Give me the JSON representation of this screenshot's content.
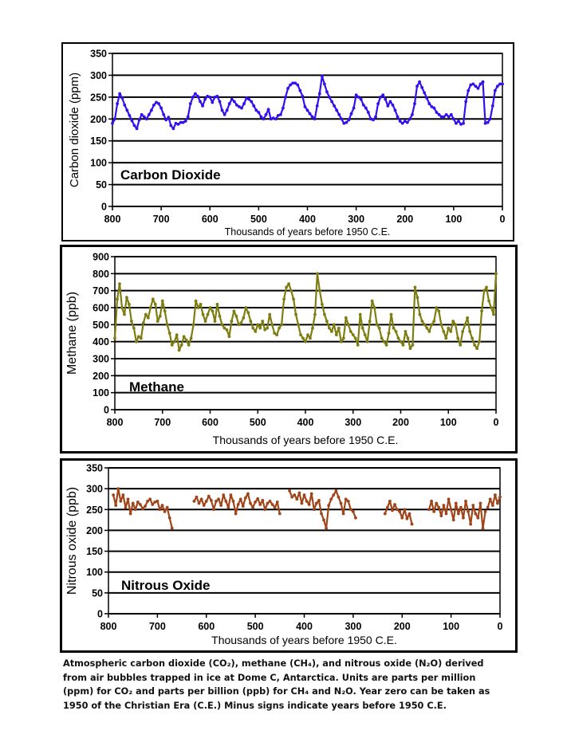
{
  "chart_data": [
    {
      "type": "line",
      "ylabel": "Carbon dioxide (ppm)",
      "xlabel": "Thousands of years before 1950 C.E.",
      "inset_label": "Carbon Dioxide",
      "x_ticks": [
        "800",
        "700",
        "600",
        "500",
        "400",
        "300",
        "200",
        "100",
        "0"
      ],
      "y_ticks": [
        "0",
        "50",
        "100",
        "150",
        "200",
        "250",
        "300",
        "350"
      ],
      "xlim": [
        800,
        0
      ],
      "ylim": [
        0,
        350
      ],
      "color": "#3311ee",
      "series": [
        {
          "x": [
            800,
            795,
            790,
            785,
            780,
            775,
            770,
            765,
            760,
            755,
            750,
            745,
            740,
            735,
            730,
            725,
            720,
            715,
            710,
            705,
            700,
            695,
            690,
            685,
            680,
            675,
            670,
            665,
            660,
            655,
            650,
            645,
            640,
            635,
            630,
            625,
            620,
            615,
            610,
            605,
            600,
            595,
            590,
            585,
            580,
            575,
            570,
            565,
            560,
            555,
            550,
            545,
            540,
            535,
            530,
            525,
            520,
            515,
            510,
            505,
            500,
            495,
            490,
            485,
            480,
            475,
            470,
            465,
            460,
            455,
            450,
            445,
            440,
            435,
            430,
            425,
            420,
            415,
            410,
            405,
            400,
            395,
            390,
            385,
            380,
            375,
            370,
            365,
            360,
            355,
            350,
            345,
            340,
            335,
            330,
            325,
            320,
            315,
            310,
            305,
            300,
            295,
            290,
            285,
            280,
            275,
            270,
            265,
            260,
            255,
            250,
            245,
            240,
            235,
            230,
            225,
            220,
            215,
            210,
            205,
            200,
            195,
            190,
            185,
            180,
            175,
            170,
            165,
            160,
            155,
            150,
            145,
            140,
            135,
            130,
            125,
            120,
            115,
            110,
            105,
            100,
            95,
            90,
            85,
            80,
            75,
            70,
            65,
            60,
            55,
            50,
            45,
            40,
            35,
            30,
            25,
            20,
            15,
            10,
            5,
            0
          ],
          "y": [
            190,
            200,
            235,
            258,
            248,
            232,
            220,
            208,
            196,
            185,
            178,
            198,
            210,
            205,
            200,
            210,
            220,
            232,
            238,
            235,
            225,
            210,
            198,
            204,
            185,
            178,
            190,
            188,
            192,
            192,
            195,
            205,
            235,
            250,
            258,
            252,
            240,
            230,
            245,
            252,
            250,
            238,
            250,
            252,
            240,
            220,
            210,
            220,
            235,
            245,
            240,
            232,
            228,
            225,
            235,
            248,
            245,
            240,
            230,
            220,
            215,
            205,
            200,
            210,
            222,
            200,
            202,
            200,
            208,
            210,
            225,
            250,
            270,
            278,
            282,
            282,
            278,
            265,
            252,
            228,
            220,
            212,
            205,
            200,
            230,
            258,
            298,
            280,
            262,
            250,
            240,
            230,
            220,
            210,
            200,
            190,
            192,
            198,
            212,
            225,
            255,
            250,
            245,
            232,
            225,
            215,
            200,
            198,
            205,
            235,
            250,
            255,
            245,
            230,
            240,
            232,
            220,
            205,
            195,
            190,
            195,
            192,
            200,
            210,
            235,
            275,
            285,
            272,
            260,
            248,
            235,
            228,
            225,
            215,
            210,
            205,
            205,
            210,
            205,
            210,
            200,
            190,
            195,
            188,
            190,
            240,
            265,
            278,
            280,
            275,
            270,
            280,
            285,
            190,
            192,
            200,
            230,
            265,
            275,
            280,
            280
          ]
        }
      ]
    },
    {
      "type": "line",
      "ylabel": "Methane (ppb)",
      "xlabel": "Thousands of years before 1950 C.E.",
      "inset_label": "Methane",
      "x_ticks": [
        "800",
        "700",
        "600",
        "500",
        "400",
        "300",
        "200",
        "100",
        "0"
      ],
      "y_ticks": [
        "0",
        "100",
        "200",
        "300",
        "400",
        "500",
        "600",
        "700",
        "800",
        "900"
      ],
      "xlim": [
        800,
        0
      ],
      "ylim": [
        0,
        900
      ],
      "color": "#7d7d12",
      "series": [
        {
          "x": [
            800,
            795,
            790,
            785,
            780,
            775,
            770,
            765,
            760,
            755,
            750,
            745,
            740,
            735,
            730,
            725,
            720,
            715,
            710,
            705,
            700,
            695,
            690,
            685,
            680,
            675,
            670,
            665,
            660,
            655,
            650,
            645,
            640,
            635,
            630,
            625,
            620,
            615,
            610,
            605,
            600,
            595,
            590,
            585,
            580,
            575,
            570,
            565,
            560,
            555,
            550,
            545,
            540,
            535,
            530,
            525,
            520,
            515,
            510,
            505,
            500,
            495,
            490,
            485,
            480,
            475,
            470,
            465,
            460,
            455,
            450,
            445,
            440,
            435,
            430,
            425,
            420,
            415,
            410,
            405,
            400,
            395,
            390,
            385,
            380,
            375,
            370,
            365,
            360,
            355,
            350,
            345,
            340,
            335,
            330,
            325,
            320,
            315,
            310,
            305,
            300,
            295,
            290,
            285,
            280,
            275,
            270,
            265,
            260,
            255,
            250,
            245,
            240,
            235,
            230,
            225,
            220,
            215,
            210,
            205,
            200,
            195,
            190,
            185,
            180,
            175,
            170,
            165,
            160,
            155,
            150,
            145,
            140,
            135,
            130,
            125,
            120,
            115,
            110,
            105,
            100,
            95,
            90,
            85,
            80,
            75,
            70,
            65,
            60,
            55,
            50,
            45,
            40,
            35,
            30,
            25,
            20,
            15,
            10,
            5,
            0
          ],
          "y": [
            420,
            650,
            740,
            600,
            560,
            660,
            620,
            520,
            480,
            400,
            430,
            420,
            510,
            560,
            540,
            600,
            650,
            620,
            520,
            550,
            640,
            580,
            500,
            450,
            380,
            400,
            440,
            350,
            380,
            430,
            410,
            380,
            420,
            500,
            640,
            600,
            620,
            560,
            520,
            560,
            600,
            580,
            520,
            620,
            550,
            500,
            480,
            470,
            430,
            520,
            580,
            550,
            500,
            510,
            540,
            600,
            570,
            520,
            480,
            460,
            500,
            480,
            520,
            470,
            480,
            560,
            500,
            450,
            440,
            480,
            500,
            650,
            720,
            740,
            700,
            650,
            560,
            500,
            440,
            420,
            400,
            440,
            420,
            480,
            560,
            800,
            700,
            620,
            560,
            520,
            480,
            460,
            500,
            440,
            480,
            400,
            420,
            540,
            500,
            460,
            440,
            420,
            380,
            560,
            480,
            440,
            400,
            520,
            640,
            600,
            500,
            480,
            420,
            400,
            380,
            450,
            560,
            480,
            460,
            420,
            400,
            380,
            460,
            420,
            360,
            380,
            720,
            660,
            560,
            520,
            500,
            480,
            460,
            500,
            520,
            600,
            580,
            500,
            460,
            420,
            480,
            460,
            520,
            500,
            420,
            380,
            460,
            500,
            540,
            460,
            420,
            380,
            360,
            400,
            580,
            700,
            720,
            640,
            600,
            560,
            800
          ]
        }
      ]
    },
    {
      "type": "line",
      "ylabel": "Nitrous oxide (ppb)",
      "xlabel": "Thousands of years before 1950 C.E.",
      "inset_label": "Nitrous Oxide",
      "x_ticks": [
        "800",
        "700",
        "600",
        "500",
        "400",
        "300",
        "200",
        "100",
        "0"
      ],
      "y_ticks": [
        "0",
        "50",
        "100",
        "150",
        "200",
        "250",
        "300",
        "350"
      ],
      "xlim": [
        800,
        0
      ],
      "ylim": [
        0,
        350
      ],
      "color": "#a0451a",
      "series": [
        {
          "x": [
            790,
            785,
            780,
            775,
            770,
            765,
            760,
            755,
            750,
            745,
            740,
            735,
            730,
            725,
            720,
            715,
            710,
            705,
            700,
            695,
            690,
            685,
            680,
            675,
            670
          ],
          "y": [
            285,
            260,
            300,
            270,
            285,
            255,
            275,
            240,
            265,
            250,
            268,
            262,
            252,
            258,
            270,
            275,
            262,
            268,
            270,
            250,
            260,
            245,
            255,
            230,
            205
          ]
        },
        {
          "x": [
            625,
            620,
            615,
            610,
            605,
            600,
            595,
            590,
            585,
            580,
            575,
            570,
            565,
            560,
            555,
            550,
            545,
            540,
            535,
            530,
            525,
            520,
            515,
            510,
            505,
            500,
            495,
            490,
            485,
            480,
            475,
            470,
            465,
            460,
            455,
            450
          ],
          "y": [
            270,
            280,
            265,
            275,
            260,
            270,
            282,
            272,
            250,
            270,
            275,
            260,
            285,
            270,
            255,
            285,
            270,
            240,
            262,
            275,
            258,
            278,
            288,
            265,
            255,
            268,
            276,
            262,
            272,
            250,
            265,
            270,
            262,
            255,
            268,
            240
          ]
        },
        {
          "x": [
            430,
            425,
            420,
            415,
            410,
            405,
            400,
            395,
            390,
            385,
            380,
            375,
            370,
            365,
            360,
            355,
            350,
            345,
            340,
            335,
            330,
            325,
            320,
            315,
            310,
            305,
            300,
            295
          ],
          "y": [
            295,
            280,
            285,
            275,
            290,
            265,
            285,
            270,
            262,
            288,
            250,
            265,
            272,
            240,
            225,
            205,
            260,
            275,
            285,
            295,
            280,
            265,
            240,
            275,
            270,
            250,
            245,
            230
          ]
        },
        {
          "x": [
            235,
            230,
            225,
            220,
            215,
            210,
            205,
            200,
            195,
            190,
            185,
            180
          ],
          "y": [
            240,
            255,
            270,
            248,
            262,
            250,
            245,
            230,
            250,
            228,
            240,
            215
          ]
        },
        {
          "x": [
            145,
            140,
            135,
            130,
            125,
            120,
            115,
            110,
            105,
            100,
            95,
            90,
            85,
            80,
            75,
            70,
            65,
            60,
            55,
            50,
            45,
            40,
            35,
            30
          ],
          "y": [
            250,
            270,
            245,
            265,
            255,
            235,
            260,
            240,
            275,
            250,
            225,
            265,
            240,
            255,
            230,
            270,
            245,
            215,
            260,
            240,
            230,
            265,
            205,
            245
          ]
        },
        {
          "x": [
            25,
            20,
            15,
            10,
            5,
            0
          ],
          "y": [
            255,
            275,
            260,
            285,
            265,
            280
          ]
        }
      ]
    }
  ],
  "caption_lines": [
    "Atmospheric carbon dioxide (CO₂), methane (CH₄), and nitrous oxide (N₂O) derived",
    "from air bubbles trapped in ice at Dome C, Antarctica.  Units are parts per million",
    "(ppm) for CO₂ and parts per billion (ppb) for CH₄ and N₂O.  Year zero can be taken as",
    "1950 of the Christian Era (C.E.)  Minus signs indicate years before 1950 C.E."
  ]
}
